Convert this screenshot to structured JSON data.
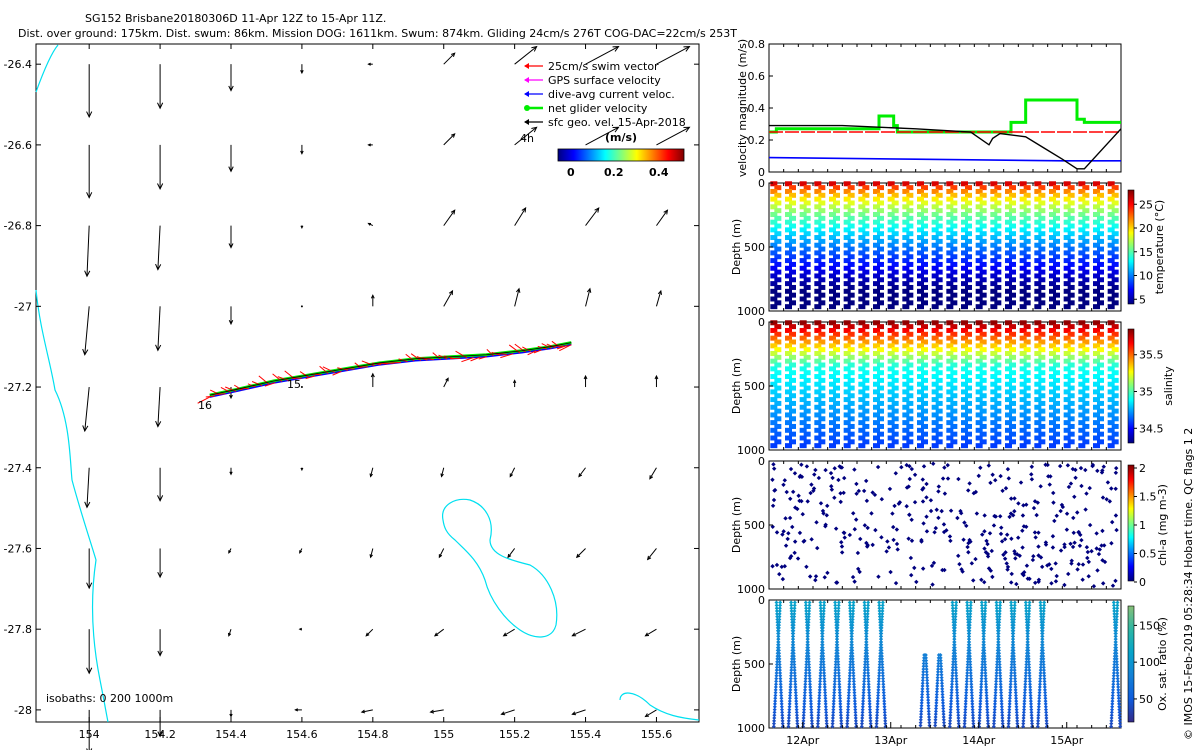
{
  "title": {
    "line1": "SG152 Brisbane20180306D 11-Apr 12Z to 15-Apr 11Z.",
    "line2": "Dist. over ground: 175km. Dist. swum: 86km. Mission DOG: 1611km. Swum: 874km. Gliding 24cm/s 276T COG-DAC=22cm/s 253T"
  },
  "credit": "© IMOS 15-Feb-2019 05:28:34 Hobart time. QC flags 1  2",
  "colors": {
    "swim": "#ff0000",
    "gps": "#ff00ff",
    "dac": "#0000ff",
    "glider": "#00ee00",
    "sfc": "#000000",
    "isobath": "#00e0f0"
  },
  "chart_data": [
    {
      "id": "map",
      "type": "scatter",
      "xlim": [
        153.85,
        155.72
      ],
      "ylim": [
        -28.03,
        -26.35
      ],
      "xticks": [
        154,
        154.2,
        154.4,
        154.6,
        154.8,
        155,
        155.2,
        155.4,
        155.6
      ],
      "yticks": [
        -26.4,
        -26.6,
        -26.8,
        -27,
        -27.2,
        -27.4,
        -27.6,
        -27.8,
        -28
      ],
      "legend": [
        {
          "label": "25cm/s swim vector",
          "color_key": "swim"
        },
        {
          "label": "GPS surface velocity",
          "color_key": "gps"
        },
        {
          "label": "dive-avg current veloc.",
          "color_key": "dac"
        },
        {
          "label": "net glider velocity",
          "color_key": "glider"
        },
        {
          "label": "sfc geo. vel. 15-Apr-2018",
          "color_key": "sfc"
        }
      ],
      "colorbar": {
        "label": "(m/s)",
        "range": [
          0,
          0.5
        ],
        "ticks": [
          0,
          0.2,
          0.4
        ]
      },
      "annotations": [
        "16",
        "15",
        "4h"
      ],
      "isobath_label": "isobaths: 0   200  1000m",
      "track": {
        "x": [
          154.34,
          154.42,
          154.52,
          154.62,
          154.72,
          154.82,
          154.92,
          155.02,
          155.12,
          155.22,
          155.3,
          155.36
        ],
        "y": [
          -27.22,
          -27.205,
          -27.185,
          -27.17,
          -27.155,
          -27.14,
          -27.13,
          -27.125,
          -27.12,
          -27.11,
          -27.1,
          -27.09
        ]
      },
      "current_grid": {
        "lons": [
          154.0,
          154.2,
          154.4,
          154.6,
          154.8,
          155.0,
          155.2,
          155.4,
          155.6
        ],
        "lats": [
          -26.4,
          -26.6,
          -26.8,
          -27.0,
          -27.2,
          -27.4,
          -27.6,
          -27.8,
          -28.0
        ],
        "u": [
          [
            0.0,
            0.0,
            0.0,
            0.0,
            -0.02,
            0.05,
            0.1,
            0.15,
            0.15
          ],
          [
            0.0,
            0.0,
            0.0,
            0.0,
            -0.02,
            0.05,
            0.1,
            0.15,
            0.15
          ],
          [
            -0.01,
            -0.01,
            0.0,
            0.0,
            -0.02,
            0.05,
            0.05,
            0.06,
            0.05
          ],
          [
            -0.02,
            -0.01,
            0.0,
            0.0,
            0.0,
            0.04,
            0.02,
            0.02,
            0.02
          ],
          [
            -0.02,
            -0.01,
            0.0,
            0.0,
            0.0,
            0.02,
            0.0,
            0.0,
            0.0
          ],
          [
            -0.01,
            0.0,
            0.0,
            0.0,
            -0.01,
            -0.01,
            -0.02,
            -0.03,
            -0.03
          ],
          [
            0.0,
            0.0,
            -0.01,
            -0.01,
            -0.01,
            -0.02,
            -0.03,
            -0.04,
            -0.04
          ],
          [
            0.0,
            0.0,
            -0.01,
            -0.01,
            -0.03,
            -0.04,
            -0.05,
            -0.06,
            -0.05
          ],
          [
            0.0,
            0.0,
            0.0,
            -0.03,
            -0.05,
            -0.06,
            -0.06,
            -0.06,
            -0.05
          ]
        ],
        "v": [
          [
            -0.24,
            -0.2,
            -0.12,
            -0.04,
            0.0,
            0.05,
            0.08,
            0.08,
            0.08
          ],
          [
            -0.24,
            -0.2,
            -0.12,
            -0.04,
            0.0,
            0.05,
            0.08,
            0.08,
            0.08
          ],
          [
            -0.23,
            -0.2,
            -0.1,
            -0.01,
            0.01,
            0.07,
            0.08,
            0.08,
            0.07
          ],
          [
            -0.22,
            -0.2,
            -0.08,
            0.0,
            0.05,
            0.07,
            0.08,
            0.08,
            0.07
          ],
          [
            -0.2,
            -0.18,
            -0.05,
            0.0,
            0.06,
            0.04,
            0.03,
            0.05,
            0.05
          ],
          [
            -0.18,
            -0.15,
            -0.03,
            -0.01,
            -0.04,
            -0.04,
            -0.04,
            -0.04,
            -0.05
          ],
          [
            -0.18,
            -0.13,
            -0.02,
            -0.02,
            -0.04,
            -0.04,
            -0.04,
            -0.04,
            -0.05
          ],
          [
            -0.2,
            -0.12,
            -0.03,
            -0.0,
            -0.03,
            -0.03,
            -0.03,
            -0.03,
            -0.03
          ],
          [
            -0.2,
            -0.12,
            -0.03,
            0.0,
            -0.01,
            -0.01,
            -0.02,
            -0.02,
            -0.03
          ]
        ]
      }
    },
    {
      "id": "velocity",
      "type": "line",
      "ylabel": "velocity magnitude (m/s)",
      "ylim": [
        0,
        0.8
      ],
      "yticks": [
        0,
        0.2,
        0.4,
        0.6,
        0.8
      ],
      "xlim": [
        0,
        96
      ],
      "series": [
        {
          "name": "net glider velocity",
          "color_key": "glider",
          "x": [
            0,
            2,
            2,
            30,
            30,
            34,
            34,
            35,
            35,
            66,
            66,
            70,
            70,
            84,
            84,
            86,
            86,
            96
          ],
          "y": [
            0.25,
            0.25,
            0.27,
            0.27,
            0.35,
            0.35,
            0.29,
            0.29,
            0.25,
            0.25,
            0.31,
            0.31,
            0.45,
            0.45,
            0.33,
            0.33,
            0.31,
            0.31
          ]
        },
        {
          "name": "25cm/s swim vector",
          "color_key": "swim",
          "x": [
            0,
            96
          ],
          "y": [
            0.25,
            0.25
          ]
        },
        {
          "name": "dive-avg current veloc.",
          "color_key": "dac",
          "x": [
            0,
            40,
            80,
            96
          ],
          "y": [
            0.09,
            0.08,
            0.07,
            0.07
          ]
        },
        {
          "name": "sfc geo. vel. 15-Apr-2018",
          "color_key": "sfc",
          "x": [
            0,
            20,
            40,
            55,
            60,
            61,
            63,
            70,
            75,
            80,
            84,
            86,
            96
          ],
          "y": [
            0.29,
            0.29,
            0.27,
            0.25,
            0.17,
            0.21,
            0.24,
            0.22,
            0.15,
            0.08,
            0.02,
            0.02,
            0.27
          ]
        }
      ]
    },
    {
      "id": "temperature",
      "type": "heatmap",
      "ylabel": "Depth (m)",
      "yticks": [
        0,
        500,
        1000
      ],
      "colorbar": {
        "label": "temperature (°C)",
        "range": [
          4,
          28
        ],
        "ticks": [
          5,
          10,
          15,
          20,
          25
        ]
      }
    },
    {
      "id": "salinity",
      "type": "heatmap",
      "ylabel": "Depth (m)",
      "yticks": [
        0,
        500,
        1000
      ],
      "colorbar": {
        "label": "salinity",
        "range": [
          34.3,
          35.85
        ],
        "ticks": [
          34.5,
          35,
          35.5
        ]
      }
    },
    {
      "id": "chla",
      "type": "scatter",
      "ylabel": "Depth (m)",
      "yticks": [
        0,
        500,
        1000
      ],
      "colorbar": {
        "label": "chl-a (mg m-3)",
        "range": [
          0,
          2
        ],
        "ticks": [
          0,
          0.5,
          1,
          1.5,
          2
        ]
      }
    },
    {
      "id": "oxygen",
      "type": "heatmap",
      "ylabel": "Depth (m)",
      "yticks": [
        0,
        500,
        1000
      ],
      "xticks": [
        "12Apr",
        "13Apr",
        "14Apr",
        "15Apr"
      ],
      "colorbar": {
        "label": "Ox. sat. ratio (%)",
        "range": [
          20,
          175
        ],
        "ticks": [
          50,
          100,
          150
        ]
      }
    }
  ]
}
